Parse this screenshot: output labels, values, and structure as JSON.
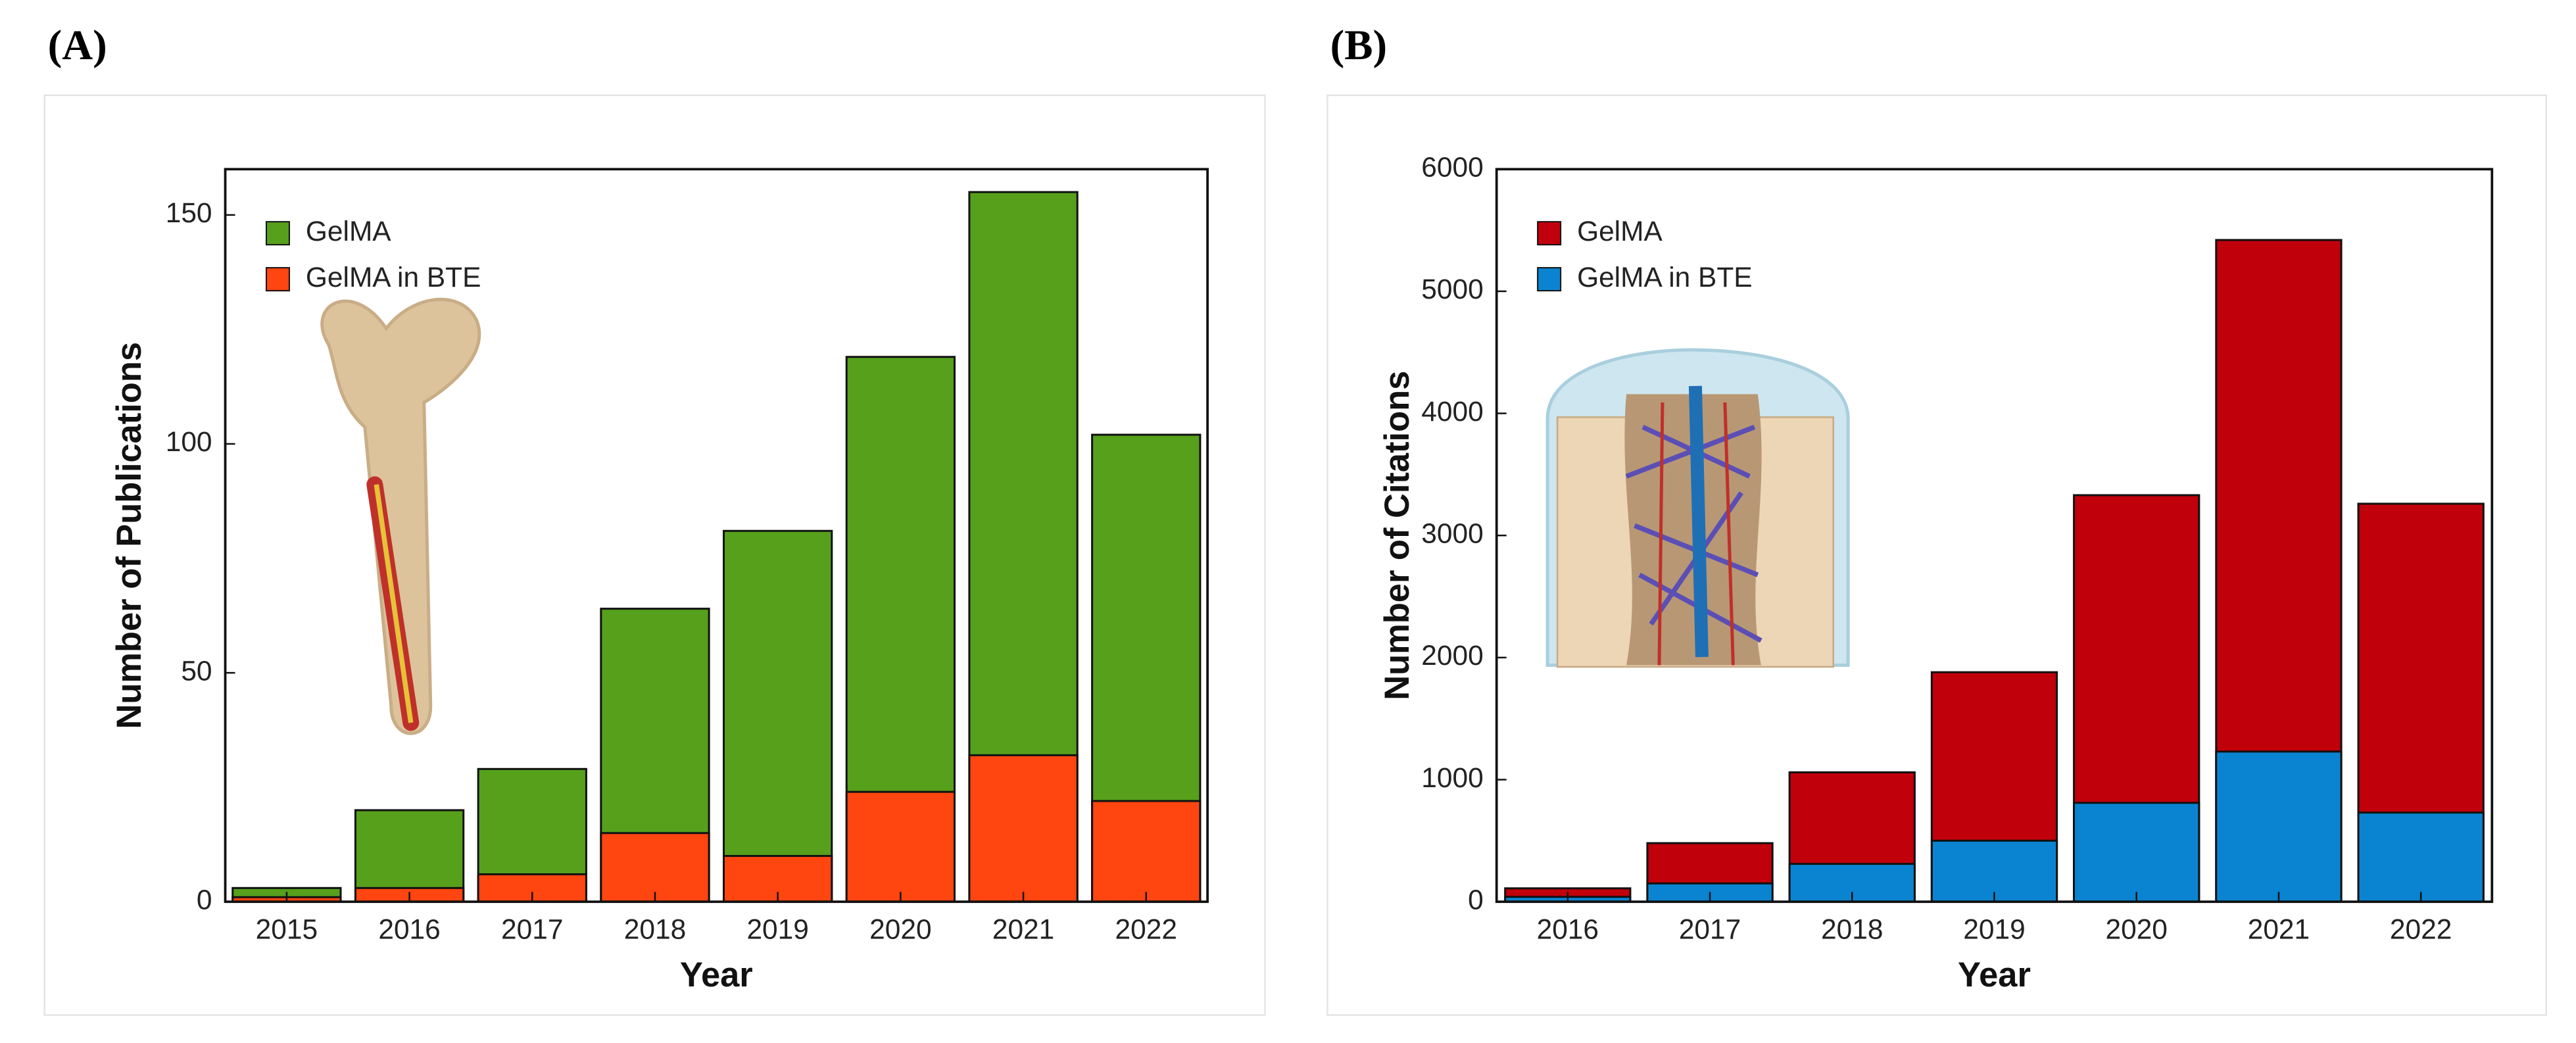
{
  "chart_data": [
    {
      "type": "bar",
      "panel_label": "(A)",
      "x_label": "Year",
      "y_label": "Number of Publications",
      "categories": [
        "2015",
        "2016",
        "2017",
        "2018",
        "2019",
        "2020",
        "2021",
        "2022"
      ],
      "series": [
        {
          "name": "GelMA",
          "color": "#56a01c",
          "values": [
            3,
            20,
            29,
            64,
            81,
            119,
            155,
            102
          ]
        },
        {
          "name": "GelMA in BTE",
          "color": "#ff4510",
          "values": [
            1,
            3,
            6,
            15,
            10,
            24,
            32,
            22
          ]
        }
      ],
      "ylim": [
        0,
        160
      ],
      "yticks": [
        0,
        50,
        100,
        150
      ],
      "legend": "upper left",
      "grid": false
    },
    {
      "type": "bar",
      "panel_label": "(B)",
      "x_label": "Year",
      "y_label": "Number of Citations",
      "categories": [
        "2016",
        "2017",
        "2018",
        "2019",
        "2020",
        "2021",
        "2022"
      ],
      "series": [
        {
          "name": "GelMA",
          "color": "#c0000b",
          "values": [
            110,
            480,
            1060,
            1880,
            3330,
            5420,
            3260
          ]
        },
        {
          "name": "GelMA in BTE",
          "color": "#0a84d0",
          "values": [
            40,
            150,
            310,
            500,
            810,
            1230,
            730
          ]
        }
      ],
      "ylim": [
        0,
        6000
      ],
      "yticks": [
        0,
        1000,
        2000,
        3000,
        4000,
        5000,
        6000
      ],
      "legend": "upper left",
      "grid": false
    }
  ]
}
